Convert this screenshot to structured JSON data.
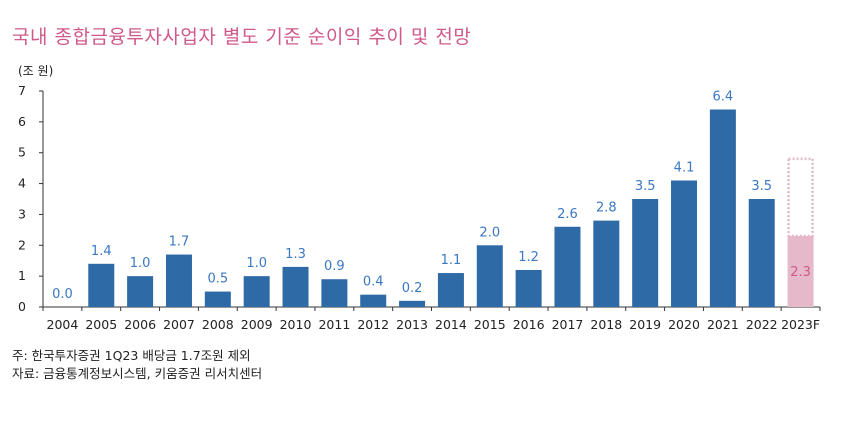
{
  "chart_data": {
    "type": "bar",
    "title": "국내 종합금융투자사업자 별도 기준 순이익 추이 및 전망",
    "ylabel": "(조 원)",
    "xlabel": "",
    "ylim": [
      0,
      7
    ],
    "yticks": [
      "0",
      "1",
      "2",
      "3",
      "4",
      "5",
      "6",
      "7"
    ],
    "categories": [
      "2004",
      "2005",
      "2006",
      "2007",
      "2008",
      "2009",
      "2010",
      "2011",
      "2012",
      "2013",
      "2014",
      "2015",
      "2016",
      "2017",
      "2018",
      "2019",
      "2020",
      "2021",
      "2022",
      "2023F"
    ],
    "values": [
      0.0,
      1.4,
      1.0,
      1.7,
      0.5,
      1.0,
      1.3,
      0.9,
      0.4,
      0.2,
      1.1,
      2.0,
      1.2,
      2.6,
      2.8,
      3.5,
      4.1,
      6.4,
      3.5,
      2.3
    ],
    "labels": [
      "0.0",
      "1.4",
      "1.0",
      "1.7",
      "0.5",
      "1.0",
      "1.3",
      "0.9",
      "0.4",
      "0.2",
      "1.1",
      "2.0",
      "1.2",
      "2.6",
      "2.8",
      "3.5",
      "4.1",
      "6.4",
      "3.5",
      "2.3"
    ],
    "forecast_dotted_top": 4.8,
    "colors": {
      "actual": "#2e6aa6",
      "forecast": "#e5b9c9",
      "forecast_label": "#d0588a",
      "actual_label": "#3a78c2",
      "title": "#d0588a"
    },
    "grid": false
  },
  "notes": [
    "주: 한국투자증권 1Q23 배당금 1.7조원 제외",
    "자료: 금융통계정보시스템, 키움증권 리서치센터"
  ]
}
